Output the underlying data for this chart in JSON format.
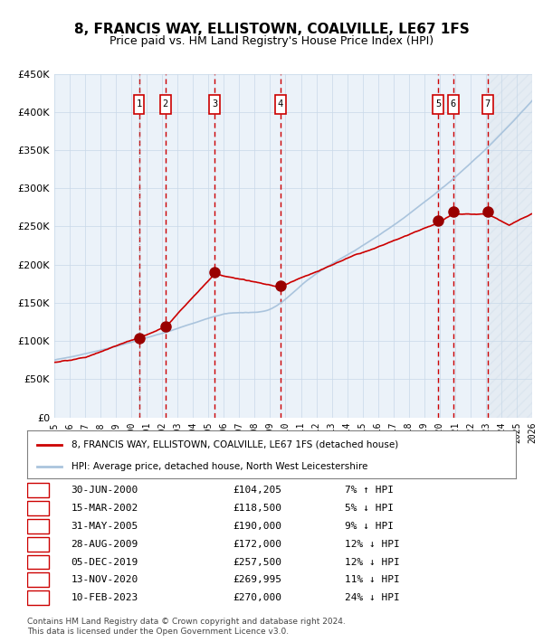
{
  "title": "8, FRANCIS WAY, ELLISTOWN, COALVILLE, LE67 1FS",
  "subtitle": "Price paid vs. HM Land Registry's House Price Index (HPI)",
  "xlim_years": [
    1995,
    2026
  ],
  "ylim": [
    0,
    450000
  ],
  "yticks": [
    0,
    50000,
    100000,
    150000,
    200000,
    250000,
    300000,
    350000,
    400000,
    450000
  ],
  "ytick_labels": [
    "£0",
    "£50K",
    "£100K",
    "£150K",
    "£200K",
    "£250K",
    "£300K",
    "£350K",
    "£400K",
    "£450K"
  ],
  "transactions": [
    {
      "num": 1,
      "date_str": "30-JUN-2000",
      "year": 2000.49,
      "price": 104205,
      "pct": "7%",
      "dir": "↑"
    },
    {
      "num": 2,
      "date_str": "15-MAR-2002",
      "year": 2002.2,
      "price": 118500,
      "pct": "5%",
      "dir": "↓"
    },
    {
      "num": 3,
      "date_str": "31-MAY-2005",
      "year": 2005.41,
      "price": 190000,
      "pct": "9%",
      "dir": "↓"
    },
    {
      "num": 4,
      "date_str": "28-AUG-2009",
      "year": 2009.66,
      "price": 172000,
      "pct": "12%",
      "dir": "↓"
    },
    {
      "num": 5,
      "date_str": "05-DEC-2019",
      "year": 2019.92,
      "price": 257500,
      "pct": "12%",
      "dir": "↓"
    },
    {
      "num": 6,
      "date_str": "13-NOV-2020",
      "year": 2020.87,
      "price": 269995,
      "pct": "11%",
      "dir": "↓"
    },
    {
      "num": 7,
      "date_str": "10-FEB-2023",
      "year": 2023.11,
      "price": 270000,
      "pct": "24%",
      "dir": "↓"
    }
  ],
  "hpi_color": "#aac4dd",
  "price_color": "#cc0000",
  "dot_color": "#990000",
  "grid_color": "#c8d8e8",
  "vline_color": "#cc0000",
  "shade_color": "#ddeeff",
  "hatch_color": "#aac4dd",
  "legend_label_price": "8, FRANCIS WAY, ELLISTOWN, COALVILLE, LE67 1FS (detached house)",
  "legend_label_hpi": "HPI: Average price, detached house, North West Leicestershire",
  "footer1": "Contains HM Land Registry data © Crown copyright and database right 2024.",
  "footer2": "This data is licensed under the Open Government Licence v3.0."
}
